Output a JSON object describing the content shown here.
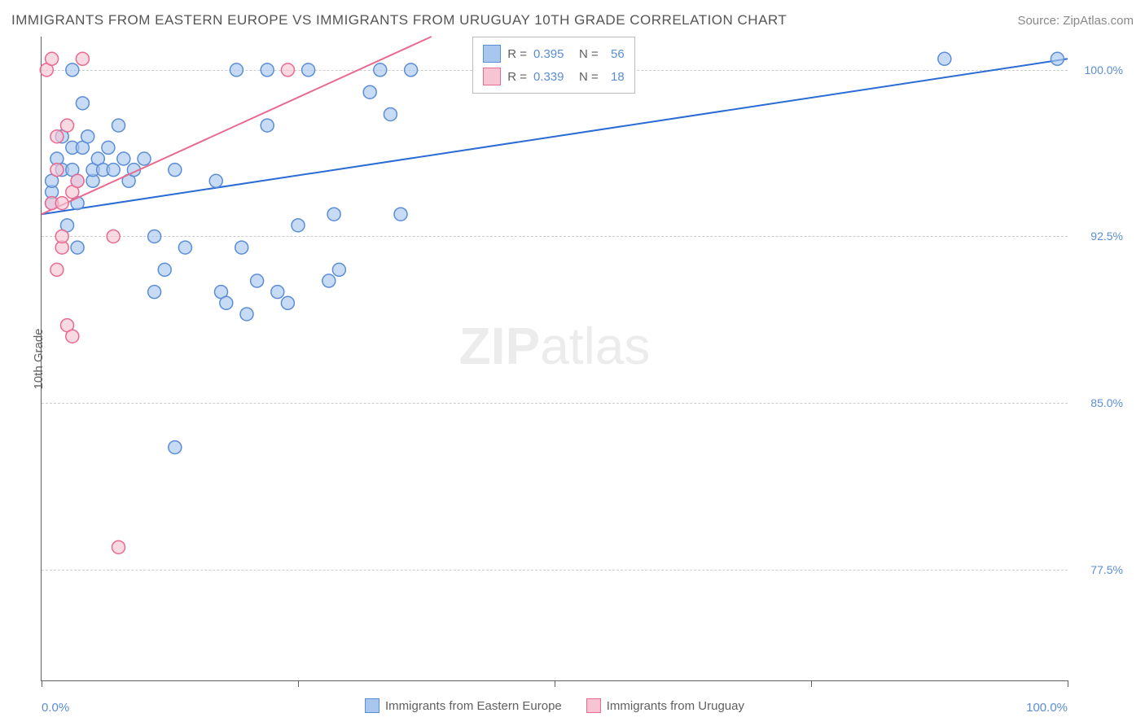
{
  "header": {
    "title": "IMMIGRANTS FROM EASTERN EUROPE VS IMMIGRANTS FROM URUGUAY 10TH GRADE CORRELATION CHART",
    "source": "Source: ZipAtlas.com"
  },
  "chart": {
    "type": "scatter",
    "y_axis_title": "10th Grade",
    "xlim": [
      0,
      100
    ],
    "ylim": [
      72.5,
      101.5
    ],
    "x_ticks": [
      0,
      25,
      50,
      75,
      100
    ],
    "x_tick_labels_shown": [
      "0.0%",
      "100.0%"
    ],
    "y_gridlines": [
      77.5,
      85.0,
      92.5,
      100.0
    ],
    "y_tick_labels": [
      "77.5%",
      "85.0%",
      "92.5%",
      "100.0%"
    ],
    "grid_color": "#cccccc",
    "axis_color": "#606060",
    "label_color": "#5b8dd6",
    "label_fontsize": 14,
    "title_fontsize": 17,
    "background_color": "#ffffff",
    "series": [
      {
        "name": "Immigrants from Eastern Europe",
        "marker_fill": "#a9c7ee",
        "marker_stroke": "#5b8dd6",
        "marker_opacity": 0.65,
        "marker_radius": 8,
        "trendline_color": "#2a6bd4",
        "trendline_width": 2,
        "trendline": {
          "x1": 0,
          "y1": 93.5,
          "x2": 100,
          "y2": 100.5
        },
        "R": 0.395,
        "N": 56,
        "points": [
          {
            "x": 1,
            "y": 94
          },
          {
            "x": 1,
            "y": 94.5
          },
          {
            "x": 1,
            "y": 95
          },
          {
            "x": 1.5,
            "y": 96
          },
          {
            "x": 2,
            "y": 95.5
          },
          {
            "x": 2,
            "y": 97
          },
          {
            "x": 2.5,
            "y": 93
          },
          {
            "x": 3,
            "y": 95.5
          },
          {
            "x": 3,
            "y": 96.5
          },
          {
            "x": 3,
            "y": 100
          },
          {
            "x": 3.5,
            "y": 94
          },
          {
            "x": 3.5,
            "y": 95
          },
          {
            "x": 3.5,
            "y": 92
          },
          {
            "x": 4,
            "y": 96.5
          },
          {
            "x": 4,
            "y": 98.5
          },
          {
            "x": 4.5,
            "y": 97
          },
          {
            "x": 5,
            "y": 95
          },
          {
            "x": 5,
            "y": 95.5
          },
          {
            "x": 5.5,
            "y": 96
          },
          {
            "x": 6,
            "y": 95.5
          },
          {
            "x": 6.5,
            "y": 96.5
          },
          {
            "x": 7,
            "y": 95.5
          },
          {
            "x": 7.5,
            "y": 97.5
          },
          {
            "x": 8,
            "y": 96
          },
          {
            "x": 8.5,
            "y": 95
          },
          {
            "x": 9,
            "y": 95.5
          },
          {
            "x": 10,
            "y": 96
          },
          {
            "x": 11,
            "y": 92.5
          },
          {
            "x": 11,
            "y": 90
          },
          {
            "x": 12,
            "y": 91
          },
          {
            "x": 13,
            "y": 95.5
          },
          {
            "x": 13,
            "y": 83
          },
          {
            "x": 14,
            "y": 92
          },
          {
            "x": 17,
            "y": 95
          },
          {
            "x": 17.5,
            "y": 90
          },
          {
            "x": 18,
            "y": 89.5
          },
          {
            "x": 19,
            "y": 100
          },
          {
            "x": 19.5,
            "y": 92
          },
          {
            "x": 20,
            "y": 89
          },
          {
            "x": 21,
            "y": 90.5
          },
          {
            "x": 22,
            "y": 97.5
          },
          {
            "x": 22,
            "y": 100
          },
          {
            "x": 23,
            "y": 90
          },
          {
            "x": 24,
            "y": 89.5
          },
          {
            "x": 25,
            "y": 93
          },
          {
            "x": 26,
            "y": 100
          },
          {
            "x": 28,
            "y": 90.5
          },
          {
            "x": 28.5,
            "y": 93.5
          },
          {
            "x": 29,
            "y": 91
          },
          {
            "x": 32,
            "y": 99
          },
          {
            "x": 33,
            "y": 100
          },
          {
            "x": 34,
            "y": 98
          },
          {
            "x": 35,
            "y": 93.5
          },
          {
            "x": 36,
            "y": 100
          },
          {
            "x": 88,
            "y": 100.5
          },
          {
            "x": 99,
            "y": 100.5
          }
        ]
      },
      {
        "name": "Immigrants from Uruguay",
        "marker_fill": "#f6c4d2",
        "marker_stroke": "#e86a8f",
        "marker_opacity": 0.65,
        "marker_radius": 8,
        "trendline_color": "#e86a8f",
        "trendline_width": 2,
        "trendline": {
          "x1": 0,
          "y1": 93.5,
          "x2": 38,
          "y2": 101.5
        },
        "R": 0.339,
        "N": 18,
        "points": [
          {
            "x": 0.5,
            "y": 100
          },
          {
            "x": 1,
            "y": 100.5
          },
          {
            "x": 1,
            "y": 94
          },
          {
            "x": 1.5,
            "y": 95.5
          },
          {
            "x": 1.5,
            "y": 97
          },
          {
            "x": 1.5,
            "y": 91
          },
          {
            "x": 2,
            "y": 92
          },
          {
            "x": 2,
            "y": 92.5
          },
          {
            "x": 2,
            "y": 94
          },
          {
            "x": 2.5,
            "y": 97.5
          },
          {
            "x": 2.5,
            "y": 88.5
          },
          {
            "x": 3,
            "y": 88
          },
          {
            "x": 3,
            "y": 94.5
          },
          {
            "x": 3.5,
            "y": 95
          },
          {
            "x": 4,
            "y": 100.5
          },
          {
            "x": 7,
            "y": 92.5
          },
          {
            "x": 7.5,
            "y": 78.5
          },
          {
            "x": 24,
            "y": 100
          }
        ]
      }
    ],
    "bottom_legend": [
      {
        "label": "Immigrants from Eastern Europe",
        "fill": "#a9c7ee",
        "stroke": "#5b8dd6"
      },
      {
        "label": "Immigrants from Uruguay",
        "fill": "#f6c4d2",
        "stroke": "#e86a8f"
      }
    ]
  },
  "watermark": {
    "bold": "ZIP",
    "light": "atlas"
  }
}
